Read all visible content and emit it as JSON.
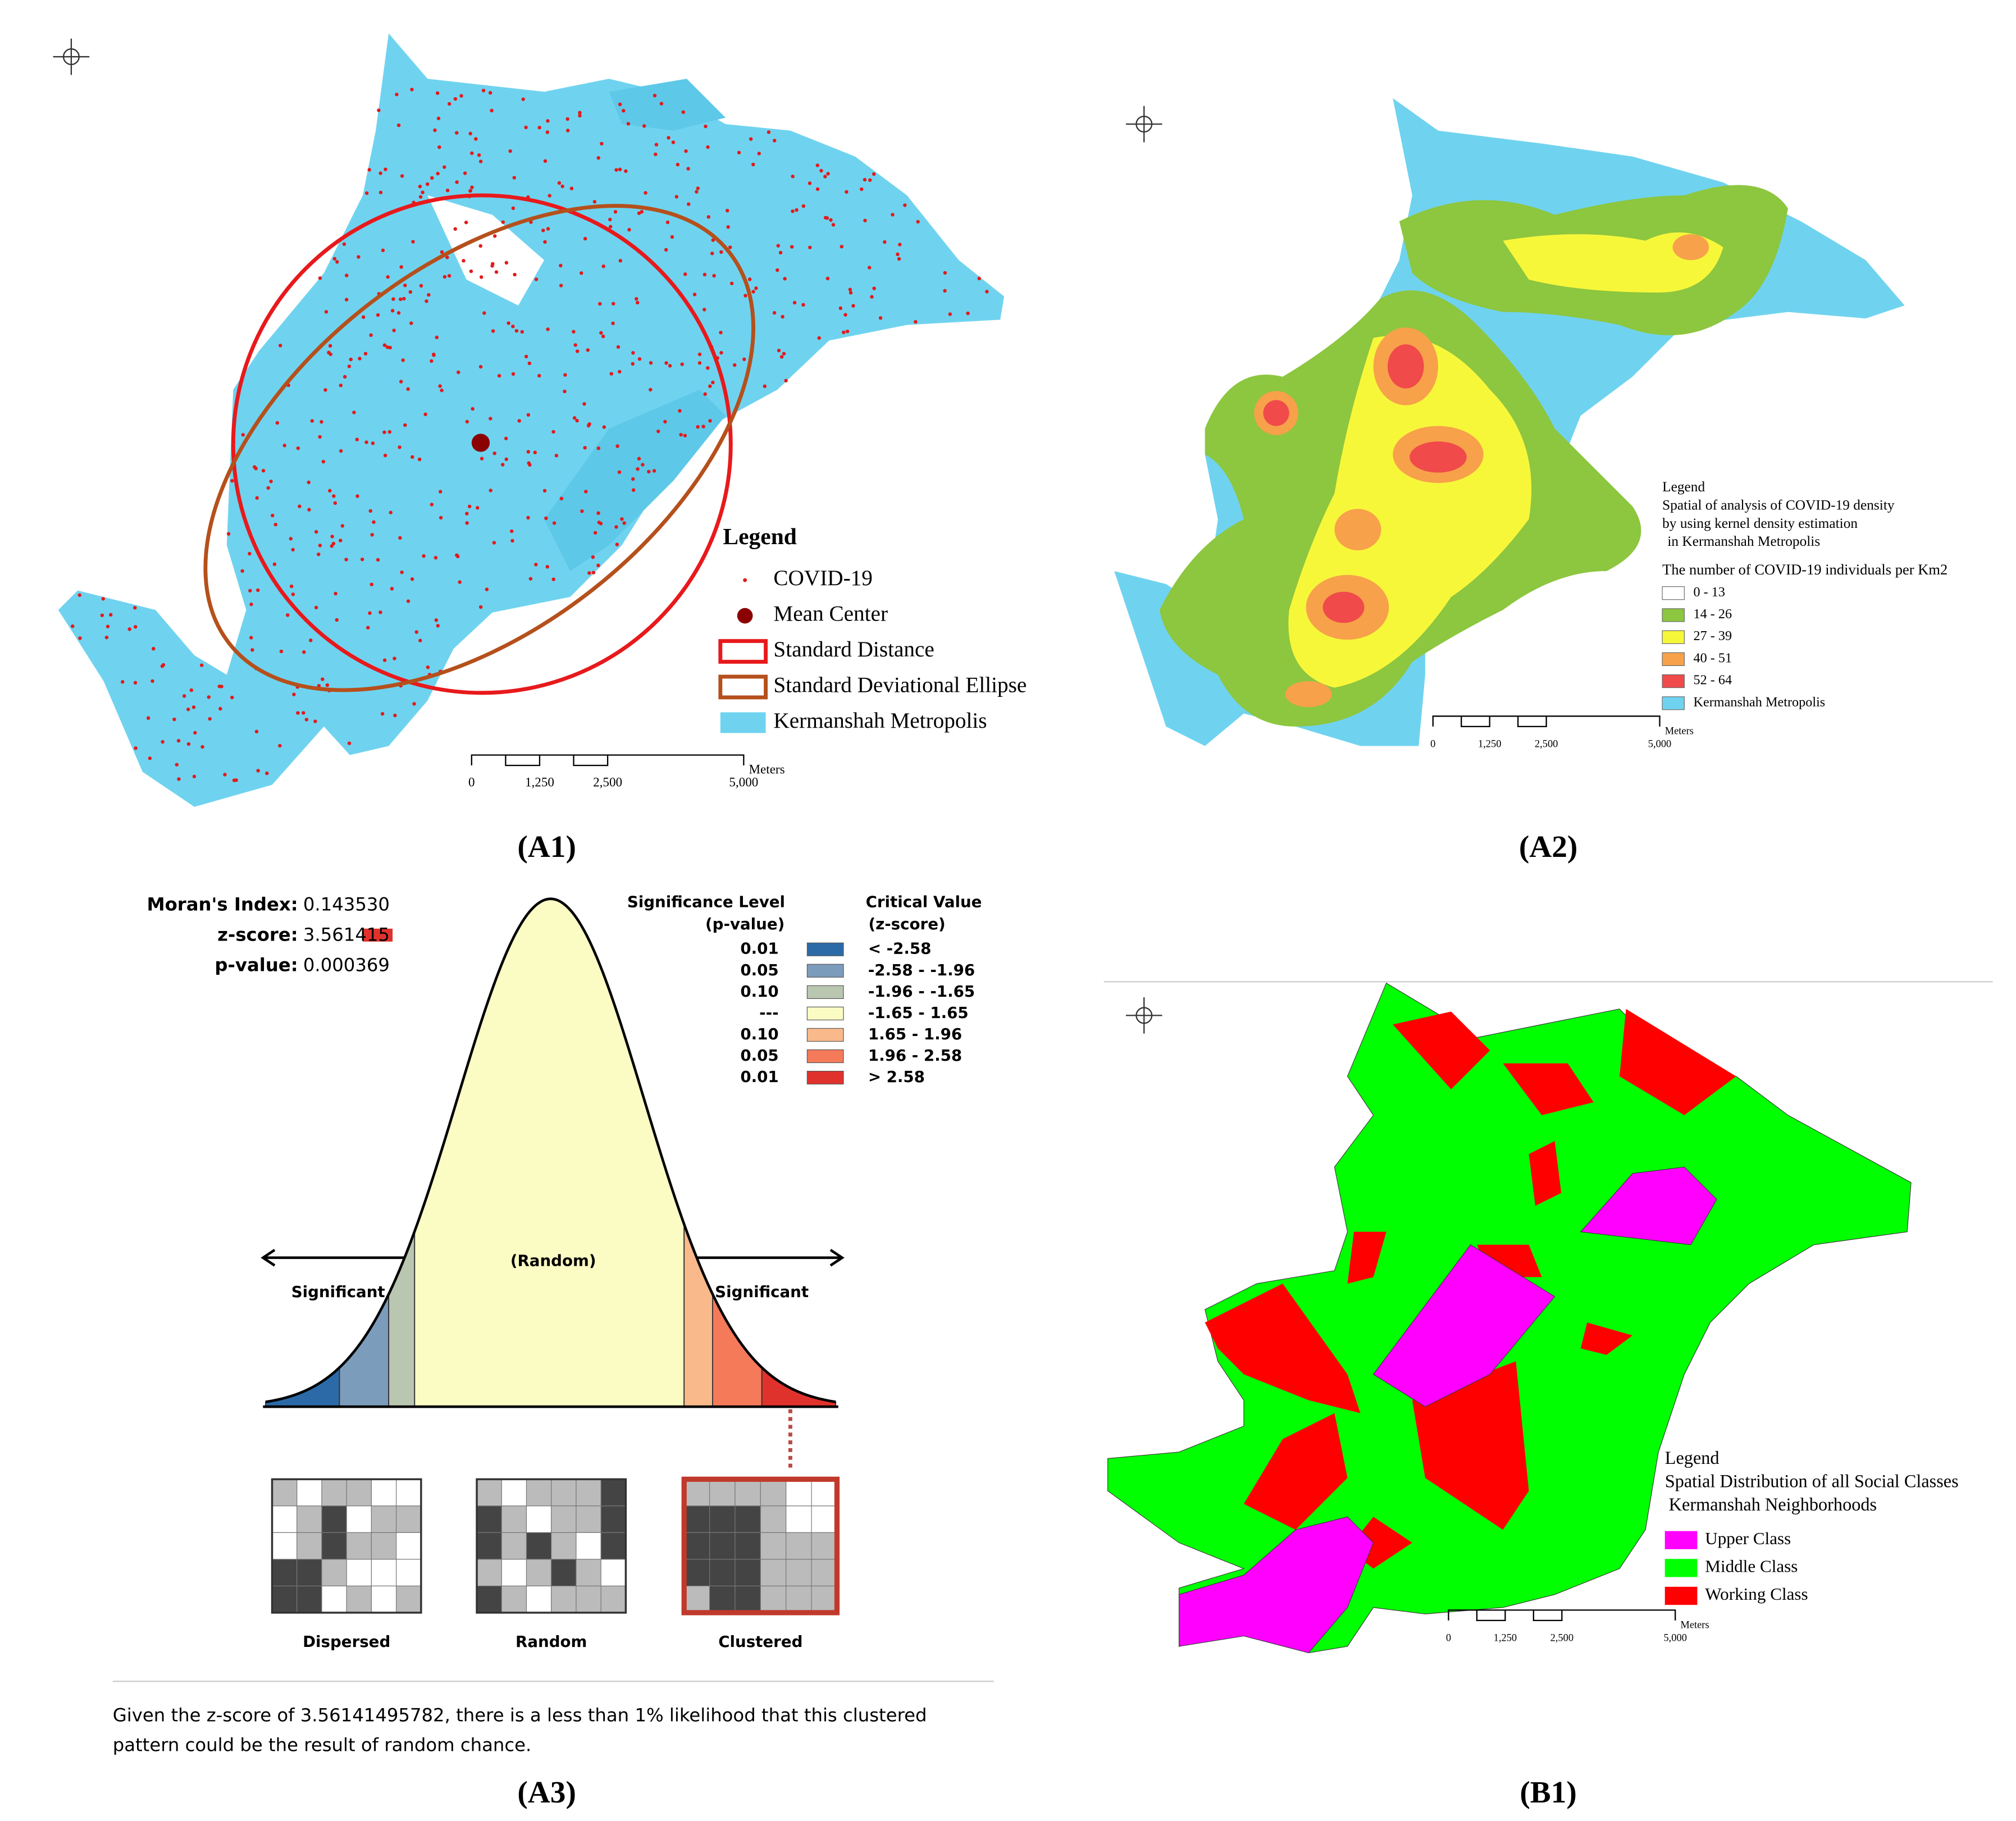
{
  "a1": {
    "label": "(A1)",
    "legend": {
      "title": "Legend",
      "items": [
        {
          "text": "COVID-19",
          "color": "#e31a1c"
        },
        {
          "text": "Mean Center",
          "color": "#8b0000"
        },
        {
          "text": "Standard Distance",
          "color": "#e8191c"
        },
        {
          "text": "Standard Deviational Ellipse",
          "color": "#b5501c"
        },
        {
          "text": "Kermanshah Metropolis",
          "color": "#6fd3ef"
        }
      ]
    },
    "scale": {
      "labels": [
        "0",
        "1,250",
        "2,500",
        "5,000"
      ],
      "unit": "Meters"
    }
  },
  "a2": {
    "label": "(A2)",
    "legend": {
      "title": [
        "Legend",
        "Spatial of analysis of COVID-19 density",
        "by using kernel density estimation",
        "in Kermanshah Metropolis"
      ],
      "subtitle": "The number of COVID-19 individuals per Km2",
      "items": [
        {
          "text": "0 - 13",
          "color": "#ffffff"
        },
        {
          "text": "14 - 26",
          "color": "#8dc63f"
        },
        {
          "text": "27 - 39",
          "color": "#f7f73a"
        },
        {
          "text": "40 - 51",
          "color": "#f7a14a"
        },
        {
          "text": "52 - 64",
          "color": "#f04a4a"
        },
        {
          "text": "Kermanshah Metropolis",
          "color": "#6fd3ef"
        }
      ]
    },
    "scale": {
      "labels": [
        "0",
        "1,250",
        "2,500",
        "5,000"
      ],
      "unit": "Meters"
    }
  },
  "a3": {
    "label": "(A3)",
    "stats": [
      {
        "name": "Moran's Index:",
        "value": "0.143530"
      },
      {
        "name": "z-score:",
        "value": "3.561415"
      },
      {
        "name": "p-value:",
        "value": "0.000369"
      }
    ],
    "table": {
      "headers": [
        [
          "Significance Level",
          "(p-value)"
        ],
        [
          "Critical Value",
          "(z-score)"
        ]
      ],
      "rows": [
        {
          "p": "0.01",
          "z": "< -2.58",
          "color": "#2b6aa6"
        },
        {
          "p": "0.05",
          "z": "-2.58 - -1.96",
          "color": "#7c9cbc"
        },
        {
          "p": "0.10",
          "z": "-1.96 - -1.65",
          "color": "#b9c6b0"
        },
        {
          "p": "---",
          "z": "-1.65 - 1.65",
          "color": "#fbfbc4"
        },
        {
          "p": "0.10",
          "z": "1.65 - 1.96",
          "color": "#f9b98a"
        },
        {
          "p": "0.05",
          "z": "1.96 - 2.58",
          "color": "#f47a5a"
        },
        {
          "p": "0.01",
          "z": "> 2.58",
          "color": "#e0322c"
        }
      ]
    },
    "curve_labels": {
      "left": "Significant",
      "center": "(Random)",
      "right": "Significant"
    },
    "patterns": [
      "Dispersed",
      "Random",
      "Clustered"
    ],
    "summary": [
      "Given the z-score of 3.56141495782, there is a less than 1% likelihood that this clustered",
      "pattern could be the result of random chance."
    ]
  },
  "b1": {
    "label": "(B1)",
    "legend": {
      "title": [
        "Legend",
        "Spatial Distribution of all Social Classes",
        "Kermanshah Neighborhoods"
      ],
      "items": [
        {
          "text": "Upper Class",
          "color": "#ff00ff"
        },
        {
          "text": "Middle Class",
          "color": "#00ff00"
        },
        {
          "text": "Working Class",
          "color": "#ff0000"
        }
      ]
    },
    "scale": {
      "labels": [
        "0",
        "1,250",
        "2,500",
        "5,000"
      ],
      "unit": "Meters"
    }
  }
}
